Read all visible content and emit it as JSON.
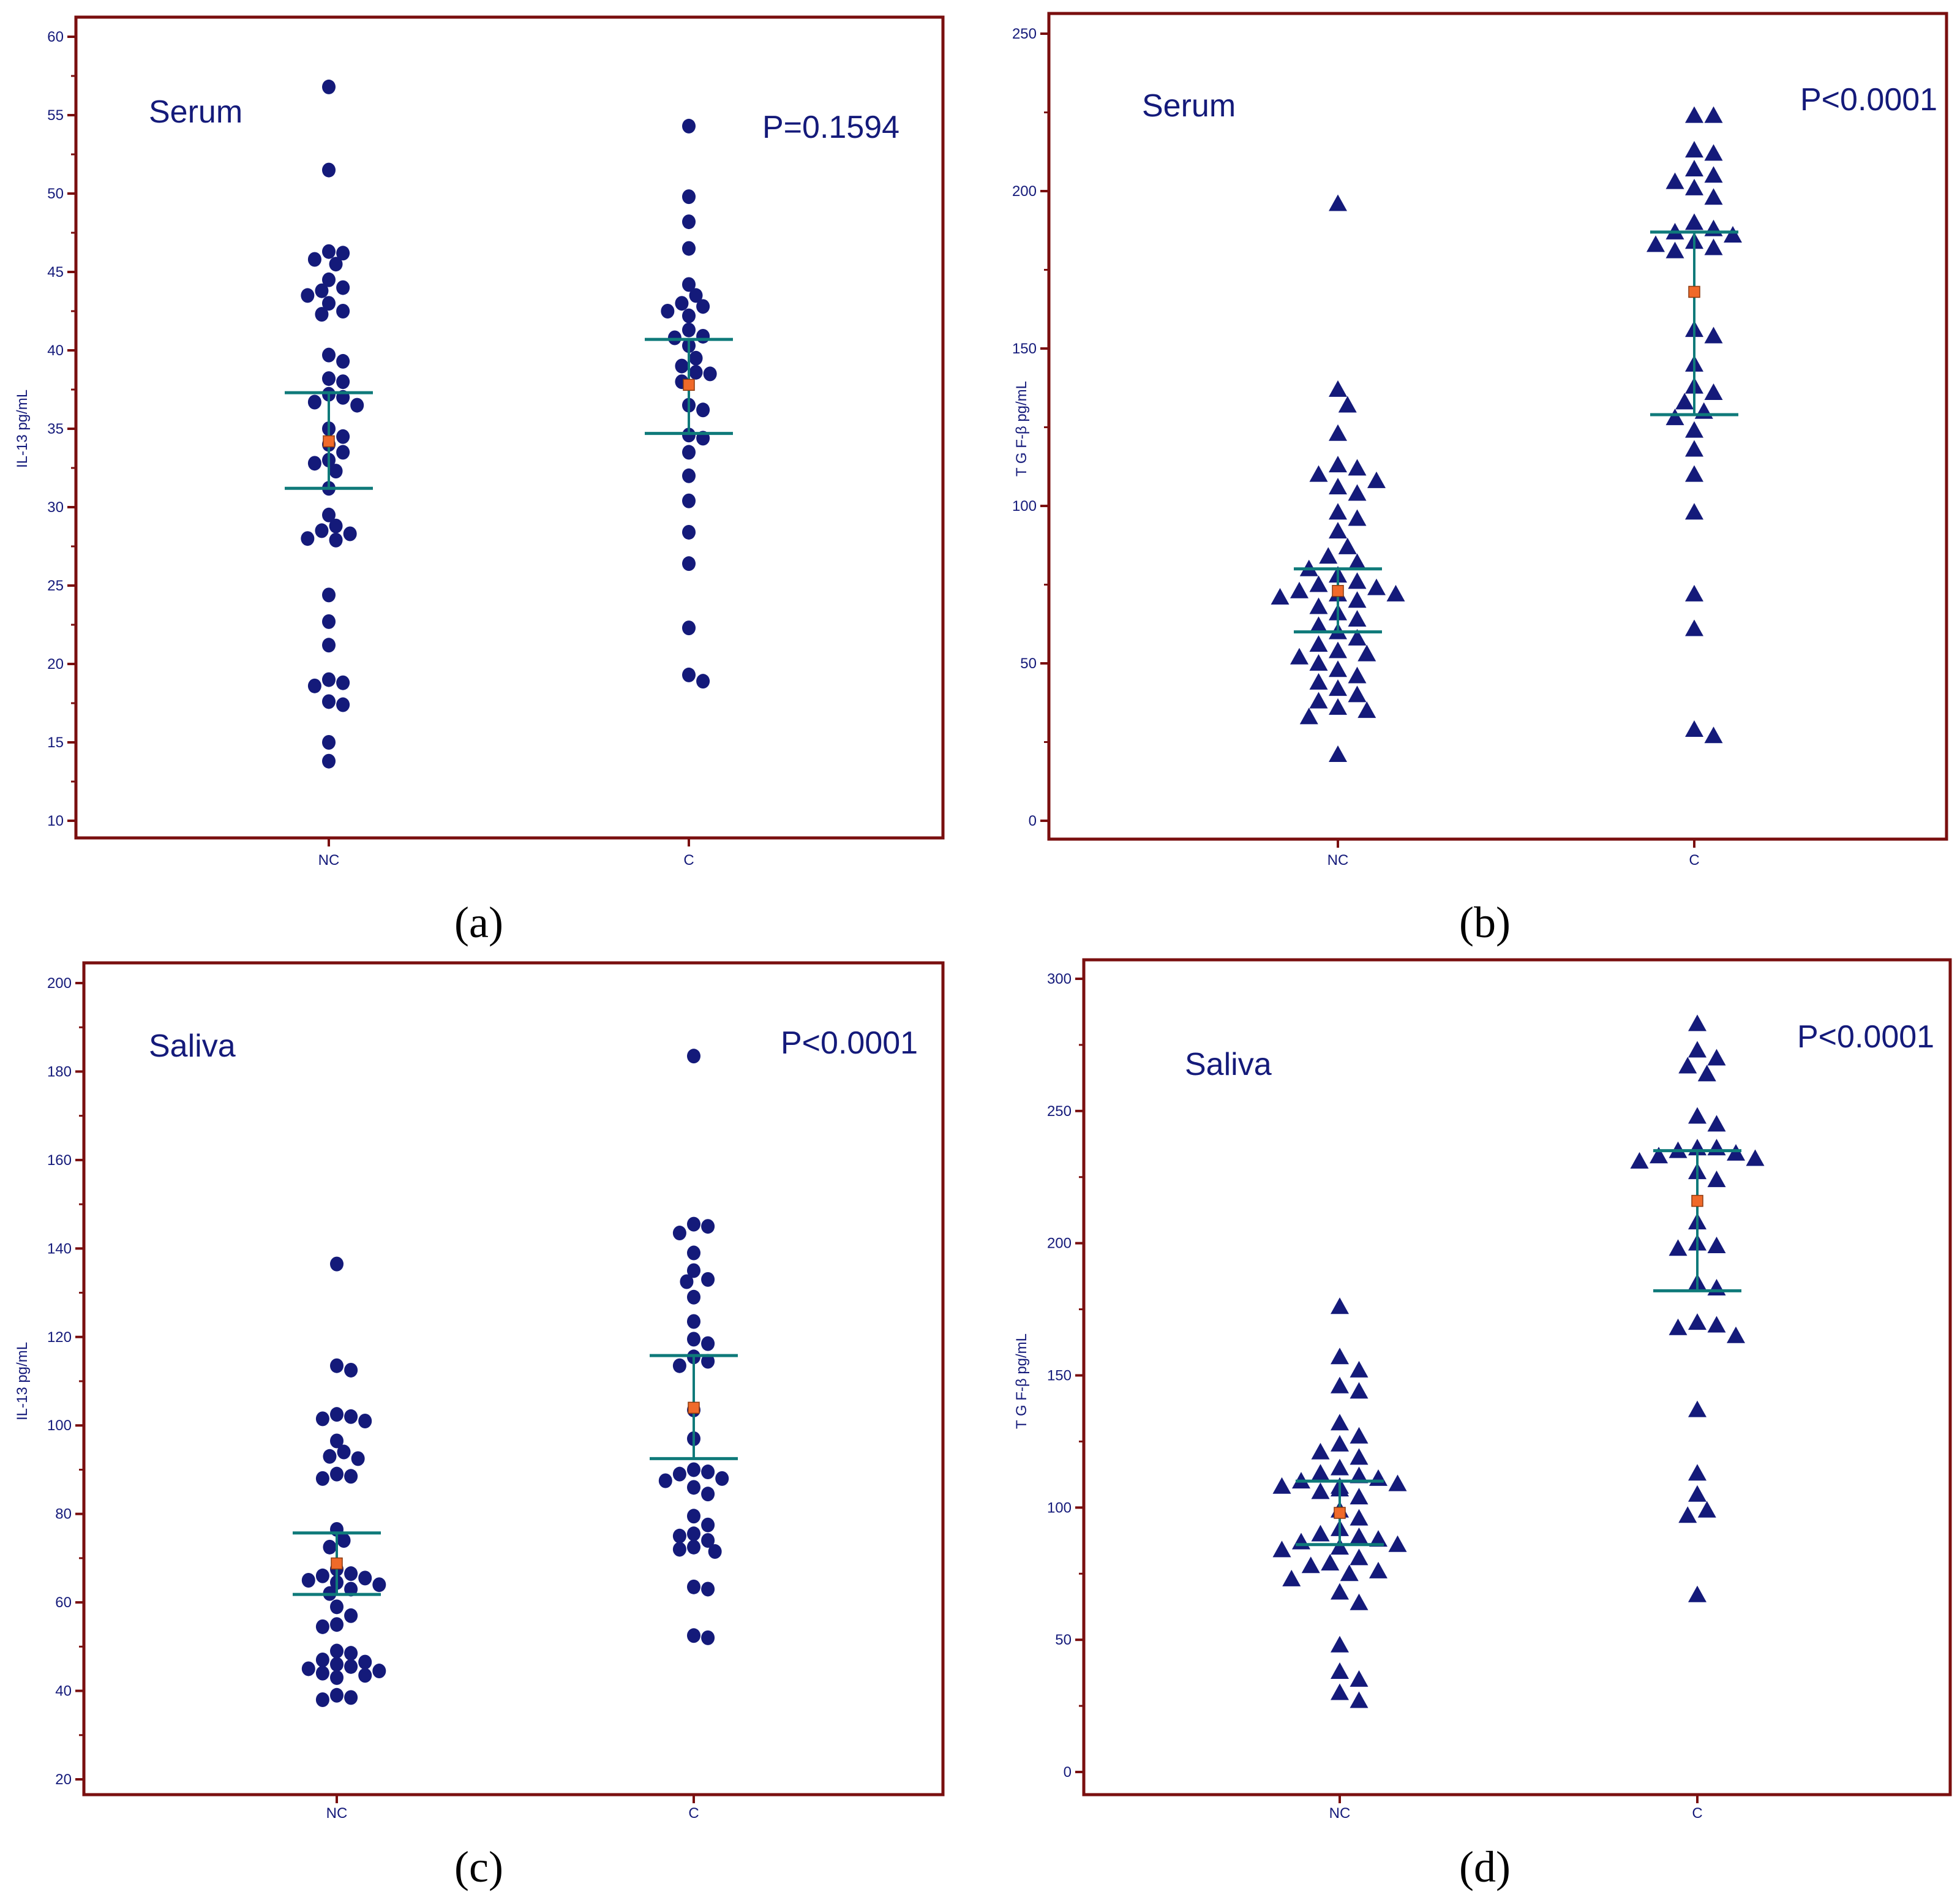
{
  "colors": {
    "frame": "#7a0f0f",
    "marker": "#141a7a",
    "line": "#0f7a7a",
    "median": "#f06a2a",
    "text": "#141a7a"
  },
  "chart_data": [
    {
      "type": "scatter",
      "caption": "(a)",
      "sample_label": "Serum",
      "p_value": "P=0.1594",
      "ylabel": "IL-13 pg/mL",
      "ylim": [
        10,
        60
      ],
      "yticks": [
        10,
        15,
        20,
        25,
        30,
        35,
        40,
        45,
        50,
        55,
        60
      ],
      "yticklabels": [
        "10",
        "15",
        "20",
        "25",
        "30",
        "35",
        "40",
        "45",
        "50",
        "55",
        "60"
      ],
      "marker": "circle",
      "categories": [
        "NC",
        "C"
      ],
      "groups": [
        {
          "name": "NC",
          "values": [
            56.8,
            51.5,
            46.3,
            46.2,
            45.8,
            45.5,
            44.5,
            44.0,
            43.8,
            43.5,
            43.0,
            42.5,
            42.3,
            39.7,
            39.3,
            38.2,
            38.0,
            37.2,
            37.0,
            36.7,
            36.5,
            35.0,
            34.5,
            34.0,
            33.5,
            33.0,
            32.8,
            32.3,
            31.2,
            29.5,
            28.8,
            28.5,
            28.3,
            28.0,
            27.9,
            24.4,
            22.7,
            21.2,
            19.0,
            18.8,
            18.6,
            17.6,
            17.4,
            15.0,
            13.8
          ],
          "q1": 31.2,
          "q3": 37.3,
          "median": 34.2
        },
        {
          "name": "C",
          "values": [
            54.3,
            49.8,
            48.2,
            46.5,
            44.2,
            43.5,
            43.0,
            42.8,
            42.5,
            42.2,
            41.3,
            40.9,
            40.8,
            40.3,
            39.5,
            39.0,
            38.6,
            38.5,
            38.0,
            36.5,
            36.2,
            34.6,
            34.4,
            33.5,
            32.0,
            30.4,
            28.4,
            26.4,
            22.3,
            19.3,
            18.9
          ],
          "q1": 34.7,
          "q3": 40.7,
          "median": 37.8
        }
      ]
    },
    {
      "type": "scatter",
      "caption": "(b)",
      "sample_label": "Serum",
      "p_value": "P<0.0001",
      "ylabel": "T G F-β pg/mL",
      "ylim": [
        0,
        250
      ],
      "yticks": [
        0,
        50,
        100,
        150,
        200,
        250
      ],
      "yticklabels": [
        "0",
        "50",
        "100",
        "150",
        "200",
        "250"
      ],
      "marker": "triangle",
      "categories": [
        "NC",
        "C"
      ],
      "groups": [
        {
          "name": "NC",
          "values": [
            196,
            137,
            132,
            123,
            113,
            112,
            110,
            108,
            106,
            104,
            98,
            96,
            92,
            87,
            84,
            82,
            80,
            78,
            76,
            75,
            74,
            73,
            72,
            72,
            71,
            70,
            68,
            66,
            64,
            62,
            60,
            58,
            56,
            54,
            53,
            52,
            50,
            48,
            46,
            44,
            42,
            40,
            38,
            36,
            35,
            33,
            21
          ],
          "q1": 60,
          "q3": 80,
          "median": 73
        },
        {
          "name": "C",
          "values": [
            224,
            224,
            213,
            212,
            207,
            205,
            203,
            201,
            198,
            190,
            188,
            187,
            186,
            184,
            183,
            182,
            181,
            156,
            154,
            145,
            138,
            136,
            133,
            130,
            128,
            124,
            118,
            110,
            98,
            72,
            61,
            29,
            27
          ],
          "q1": 129,
          "q3": 187,
          "median": 168
        }
      ]
    },
    {
      "type": "scatter",
      "caption": "(c)",
      "sample_label": "Saliva",
      "p_value": "P<0.0001",
      "ylabel": "IL-13 pg/mL",
      "ylim": [
        20,
        200
      ],
      "yticks": [
        20,
        40,
        60,
        80,
        100,
        120,
        140,
        160,
        180,
        200
      ],
      "yticklabels": [
        "20",
        "40",
        "60",
        "80",
        "100",
        "120",
        "140",
        "160",
        "180",
        "200"
      ],
      "marker": "circle",
      "categories": [
        "NC",
        "C"
      ],
      "groups": [
        {
          "name": "NC",
          "values": [
            136.5,
            113.5,
            112.5,
            102.5,
            102.0,
            101.5,
            101.0,
            96.5,
            94.0,
            93.0,
            92.5,
            89.0,
            88.5,
            88.0,
            76.5,
            74.0,
            72.5,
            67.5,
            66.5,
            66.0,
            65.5,
            65.0,
            64.5,
            64.0,
            63.0,
            62.0,
            59.0,
            57.0,
            55.0,
            54.5,
            49.0,
            48.5,
            47.0,
            46.5,
            46.0,
            45.5,
            45.0,
            44.5,
            44.0,
            43.5,
            43.0,
            39.0,
            38.5,
            38.0
          ],
          "q1": 61.8,
          "q3": 75.7,
          "median": 68.8
        },
        {
          "name": "C",
          "values": [
            183.5,
            145.5,
            145.0,
            143.5,
            139.0,
            135.0,
            133.0,
            132.5,
            129.0,
            123.5,
            119.5,
            118.5,
            115.5,
            114.5,
            113.5,
            103.5,
            97.0,
            90.0,
            89.5,
            89.0,
            88.0,
            87.5,
            86.0,
            84.5,
            79.5,
            77.5,
            75.5,
            75.0,
            74.0,
            72.5,
            72.0,
            71.5,
            63.5,
            63.0,
            52.5,
            52.0
          ],
          "q1": 92.5,
          "q3": 115.8,
          "median": 104.0
        }
      ]
    },
    {
      "type": "scatter",
      "caption": "(d)",
      "sample_label": "Saliva",
      "p_value": "P<0.0001",
      "ylabel": "T G F-β pg/mL",
      "ylim": [
        0,
        300
      ],
      "yticks": [
        0,
        50,
        100,
        150,
        200,
        250,
        300
      ],
      "yticklabels": [
        "0",
        "50",
        "100",
        "150",
        "200",
        "250",
        "300"
      ],
      "marker": "triangle",
      "categories": [
        "NC",
        "C"
      ],
      "groups": [
        {
          "name": "NC",
          "values": [
            176,
            157,
            152,
            146,
            144,
            132,
            127,
            124,
            121,
            119,
            115,
            113,
            112,
            111,
            110,
            109,
            108,
            108,
            107,
            106,
            104,
            99,
            96,
            92,
            90,
            89,
            88,
            87,
            86,
            85,
            84,
            81,
            79,
            78,
            76,
            75,
            73,
            68,
            64,
            48,
            38,
            35,
            30,
            27
          ],
          "q1": 86,
          "q3": 110,
          "median": 98
        },
        {
          "name": "C",
          "values": [
            283,
            273,
            270,
            267,
            264,
            248,
            245,
            236,
            236,
            235,
            234,
            233,
            232,
            231,
            227,
            224,
            208,
            200,
            199,
            198,
            185,
            183,
            170,
            169,
            168,
            165,
            137,
            113,
            105,
            99,
            97,
            67
          ],
          "q1": 182,
          "q3": 235,
          "median": 216
        }
      ]
    }
  ]
}
